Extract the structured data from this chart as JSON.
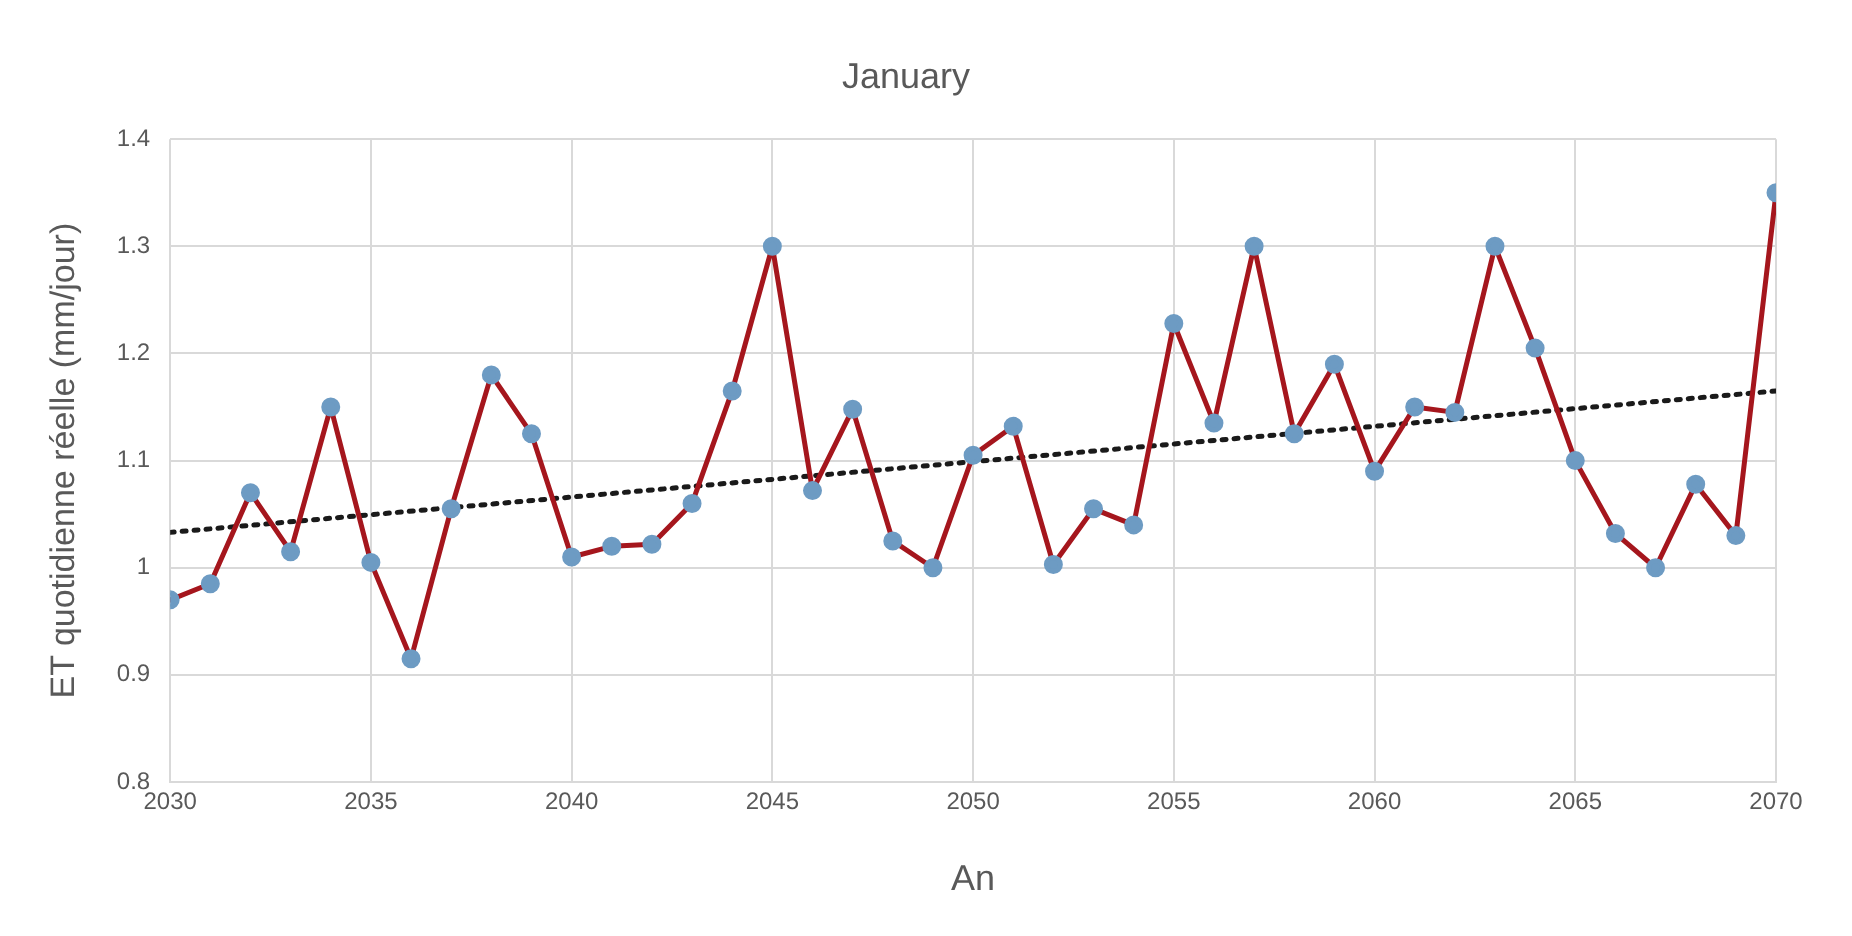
{
  "chart_data": {
    "type": "line",
    "title": "January",
    "xlabel": "An",
    "ylabel": "ET quotidienne réelle (mm/jour)",
    "x": [
      2030,
      2031,
      2032,
      2033,
      2034,
      2035,
      2036,
      2037,
      2038,
      2039,
      2040,
      2041,
      2042,
      2043,
      2044,
      2045,
      2046,
      2047,
      2048,
      2049,
      2050,
      2051,
      2052,
      2053,
      2054,
      2055,
      2056,
      2057,
      2058,
      2059,
      2060,
      2061,
      2062,
      2063,
      2064,
      2065,
      2066,
      2067,
      2068,
      2069,
      2070
    ],
    "series": [
      {
        "color": "#a5161d",
        "colors": [
          "#6d9bc3",
          "#6d9bc3",
          "#6d9bc3",
          "#6d9bc3",
          "#6d9bc3",
          "#6d9bc3",
          "#6d9bc3",
          "#6d9bc3",
          "#6d9bc3",
          "#6d9bc3",
          "#6d9bc3",
          "#6d9bc3",
          "#6d9bc3",
          "#6d9bc3",
          "#6d9bc3",
          "#6d9bc3",
          "#6d9bc3",
          "#6d9bc3",
          "#6d9bc3",
          "#6d9bc3",
          "#6d9bc3",
          "#6d9bc3",
          "#6d9bc3",
          "#6d9bc3",
          "#6d9bc3",
          "#6d9bc3",
          "#6d9bc3",
          "#6d9bc3",
          "#6d9bc3",
          "#6d9bc3",
          "#6d9bc3",
          "#6d9bc3",
          "#6d9bc3",
          "#6d9bc3",
          "#6d9bc3",
          "#6d9bc3",
          "#6d9bc3",
          "#6d9bc3",
          "#6d9bc3",
          "#6d9bc3",
          "#6d9bc3"
        ],
        "marker": "circle",
        "line_style": "solid",
        "values": [
          0.97,
          0.985,
          1.07,
          1.015,
          1.15,
          1.005,
          0.915,
          1.055,
          1.18,
          1.125,
          1.01,
          1.02,
          1.022,
          1.06,
          1.165,
          1.3,
          1.072,
          1.148,
          1.025,
          1.0,
          1.105,
          1.132,
          1.003,
          1.055,
          1.04,
          1.228,
          1.135,
          1.3,
          1.125,
          1.19,
          1.09,
          1.15,
          1.145,
          1.3,
          1.205,
          1.1,
          1.032,
          1.0,
          1.078,
          1.03,
          1.35
        ]
      },
      {
        "color": "#1a1a1a",
        "x": [
          2030,
          2070
        ],
        "marker": "none",
        "line_style": "dotted",
        "values": [
          1.033,
          1.165
        ]
      }
    ],
    "xlim": [
      2030,
      2070
    ],
    "xticks": [
      2030,
      2035,
      2040,
      2045,
      2050,
      2055,
      2060,
      2065,
      2070
    ],
    "ylim": [
      0.8,
      1.4
    ],
    "yticks": [
      0.8,
      0.9,
      1,
      1.1,
      1.2,
      1.3,
      1.4
    ],
    "grid": true,
    "legend": false
  }
}
